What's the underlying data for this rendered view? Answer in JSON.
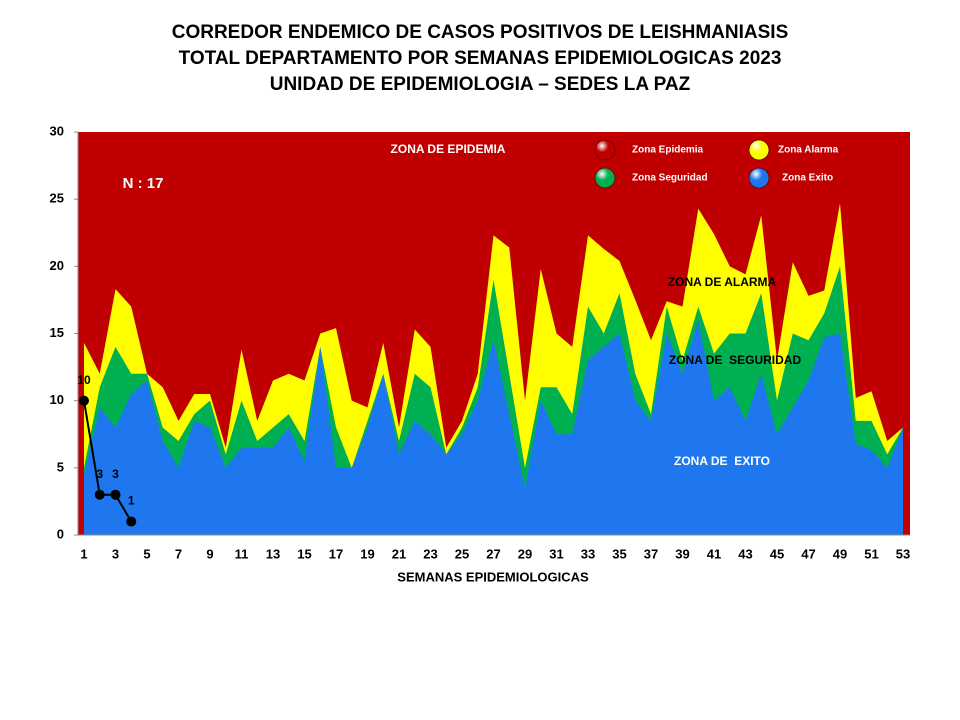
{
  "chart_data": {
    "type": "area",
    "title": [
      "CORREDOR ENDEMICO DE CASOS POSITIVOS DE LEISHMANIASIS",
      "TOTAL DEPARTAMENTO POR SEMANAS EPIDEMIOLOGICAS 2023",
      "UNIDAD DE EPIDEMIOLOGIA – SEDES LA PAZ"
    ],
    "x_label": "SEMANAS EPIDEMIOLOGICAS",
    "annotations": [
      "ZONA DE EPIDEMIA",
      "N : 17",
      "ZONA DE ALARMA",
      "ZONA DE  SEGURIDAD",
      "ZONA DE  EXITO"
    ],
    "categories": [
      1,
      null,
      3,
      null,
      5,
      null,
      7,
      null,
      9,
      null,
      11,
      null,
      13,
      null,
      15,
      null,
      17,
      null,
      19,
      null,
      21,
      null,
      23,
      null,
      25,
      null,
      27,
      null,
      29,
      null,
      31,
      null,
      33,
      null,
      35,
      null,
      37,
      null,
      39,
      null,
      41,
      null,
      43,
      null,
      45,
      null,
      47,
      null,
      49,
      null,
      51,
      null,
      53
    ],
    "ylim": [
      0,
      30
    ],
    "yticks": [
      0,
      5,
      10,
      15,
      20,
      25,
      30
    ],
    "series": [
      {
        "name": "Zona Epidemia",
        "color": "#c00000"
      },
      {
        "name": "Zona Alarma",
        "color": "#ffff00",
        "values": [
          14.3,
          12,
          18.3,
          17,
          12,
          11,
          8.5,
          10.5,
          10.5,
          6.5,
          13.8,
          8.5,
          11.5,
          12,
          11.5,
          15,
          15.4,
          10,
          9.5,
          14.3,
          8,
          15.3,
          14,
          6.5,
          8.5,
          12,
          22.3,
          21.4,
          10,
          19.8,
          15,
          14,
          22.3,
          21.3,
          20.4,
          17.5,
          14.5,
          17.4,
          17,
          24.3,
          22.4,
          20,
          19.4,
          23.8,
          13,
          20.3,
          17.8,
          18.2,
          24.7,
          10.2,
          10.7,
          7,
          8
        ]
      },
      {
        "name": "Zona Seguridad",
        "color": "#00b050",
        "values": [
          5,
          11,
          14,
          12,
          12,
          8,
          7,
          9,
          10,
          6,
          10,
          7,
          8,
          9,
          7,
          14,
          8,
          5,
          8.5,
          12,
          7,
          12,
          11,
          6,
          8,
          11,
          19,
          12,
          5,
          11,
          11,
          9,
          17,
          15,
          18,
          12,
          9,
          17,
          13,
          17,
          13.5,
          15,
          15,
          18,
          10,
          15,
          14.5,
          16.5,
          20,
          8.5,
          8.5,
          6,
          8
        ]
      },
      {
        "name": "Zona Exito",
        "color": "#1f77f0",
        "values": [
          4.5,
          9.5,
          8,
          10.5,
          11.5,
          7,
          5,
          8.5,
          8,
          5,
          6.5,
          6.5,
          6.5,
          8,
          5.5,
          14,
          5,
          5,
          8,
          12,
          6,
          8.5,
          7.5,
          6,
          7.5,
          10,
          14.5,
          9,
          3.5,
          10,
          7.5,
          7.5,
          13,
          14,
          15,
          10,
          8.5,
          15,
          12,
          16,
          10,
          11,
          8.5,
          12,
          7.5,
          9.5,
          11.5,
          14.7,
          15,
          6.8,
          6.3,
          5,
          8
        ]
      }
    ],
    "cases": {
      "color": "#000000",
      "values": [
        10,
        3,
        3,
        1,
        null,
        null,
        null,
        null,
        null,
        null,
        null,
        null,
        null,
        null,
        null,
        null,
        null,
        null,
        null,
        null,
        null,
        null,
        null,
        null,
        null,
        null,
        null,
        null,
        null,
        null,
        null,
        null,
        null,
        null,
        null,
        null,
        null,
        null,
        null,
        null,
        null,
        null,
        null,
        null,
        null,
        null,
        null,
        null,
        null,
        null,
        null,
        null,
        null
      ]
    }
  }
}
